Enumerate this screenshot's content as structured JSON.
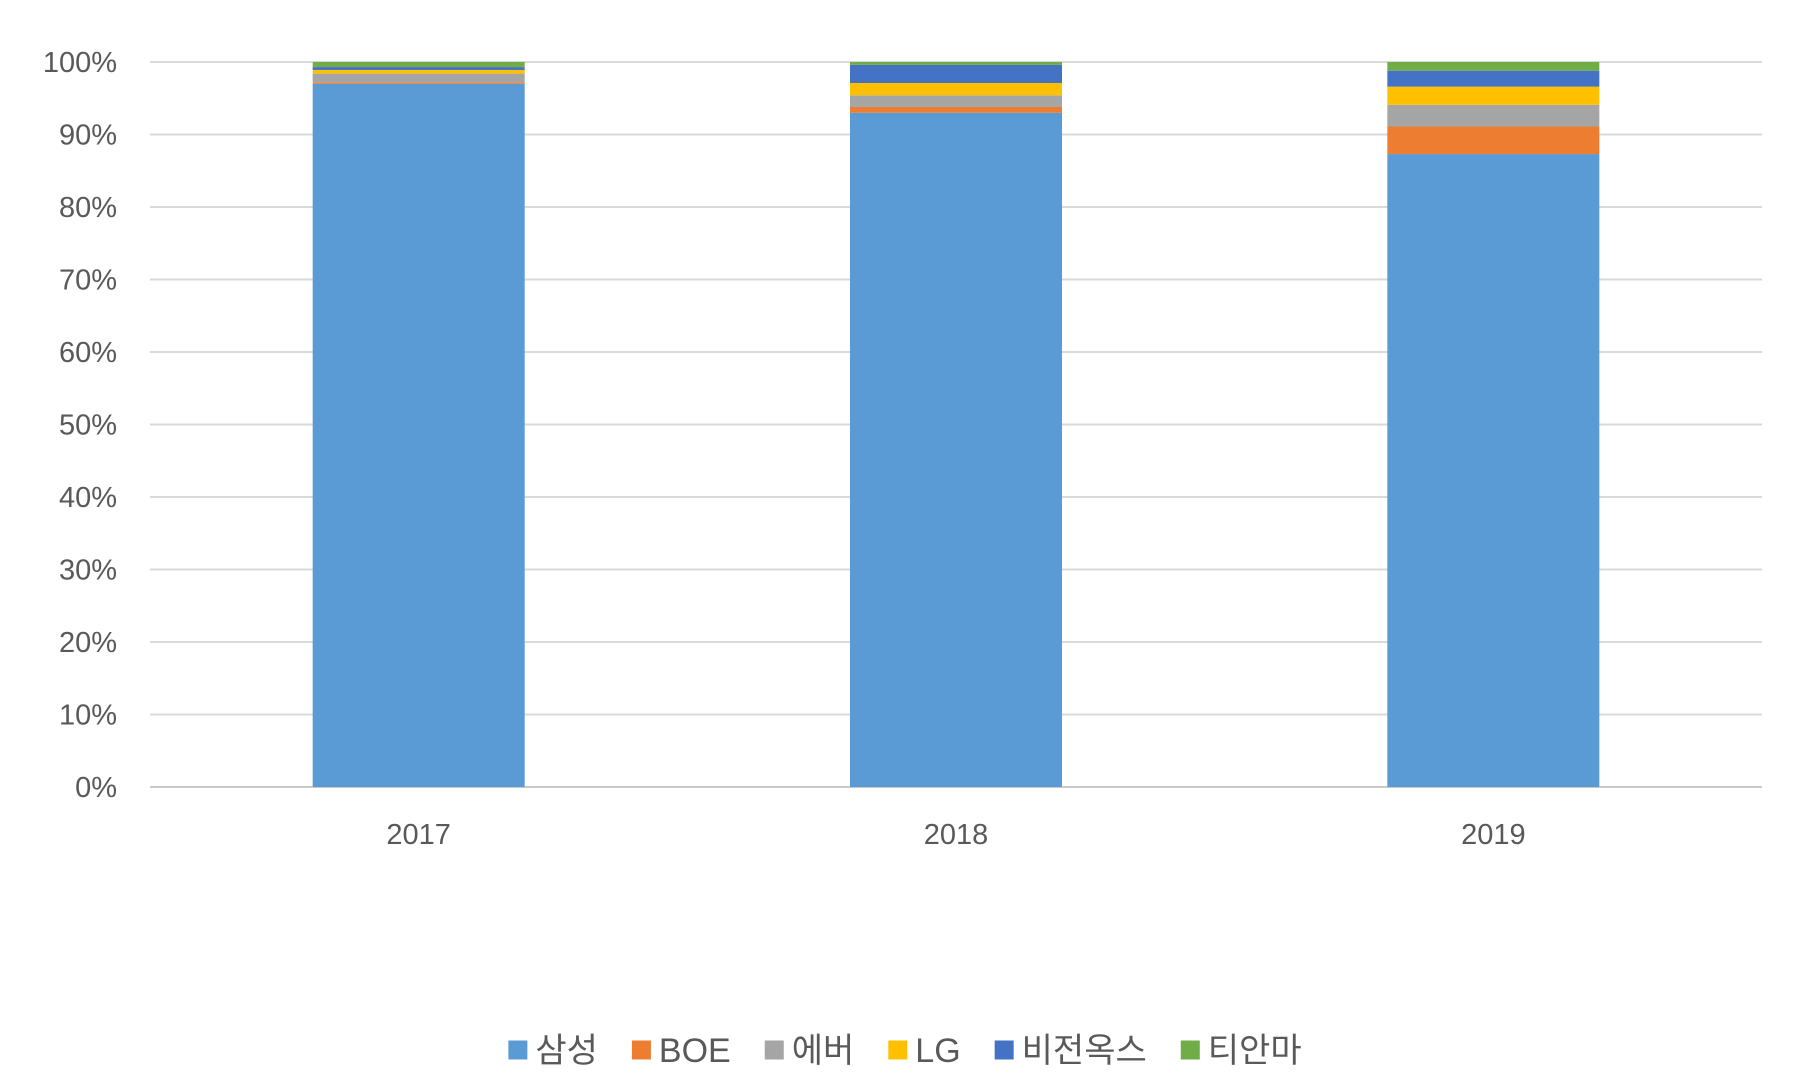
{
  "chart_data": {
    "type": "bar",
    "stacked": true,
    "normalized": true,
    "categories": [
      "2017",
      "2018",
      "2019"
    ],
    "series": [
      {
        "name": "삼성",
        "color": "#5B9BD5",
        "values": [
          97.0,
          93.0,
          87.3
        ]
      },
      {
        "name": "BOE",
        "color": "#ED7D31",
        "values": [
          0.2,
          0.8,
          3.8
        ]
      },
      {
        "name": "에버",
        "color": "#A5A5A5",
        "values": [
          1.2,
          1.6,
          3.0
        ]
      },
      {
        "name": "LG",
        "color": "#FFC000",
        "values": [
          0.5,
          1.7,
          2.5
        ]
      },
      {
        "name": "비전옥스",
        "color": "#4472C4",
        "values": [
          0.4,
          2.5,
          2.2
        ]
      },
      {
        "name": "티안마",
        "color": "#70AD47",
        "values": [
          0.7,
          0.4,
          1.2
        ]
      }
    ],
    "y_ticks": [
      "0%",
      "10%",
      "20%",
      "30%",
      "40%",
      "50%",
      "60%",
      "70%",
      "80%",
      "90%",
      "100%"
    ],
    "ylim": [
      0,
      100
    ],
    "grid": true,
    "legend_position": "bottom"
  }
}
